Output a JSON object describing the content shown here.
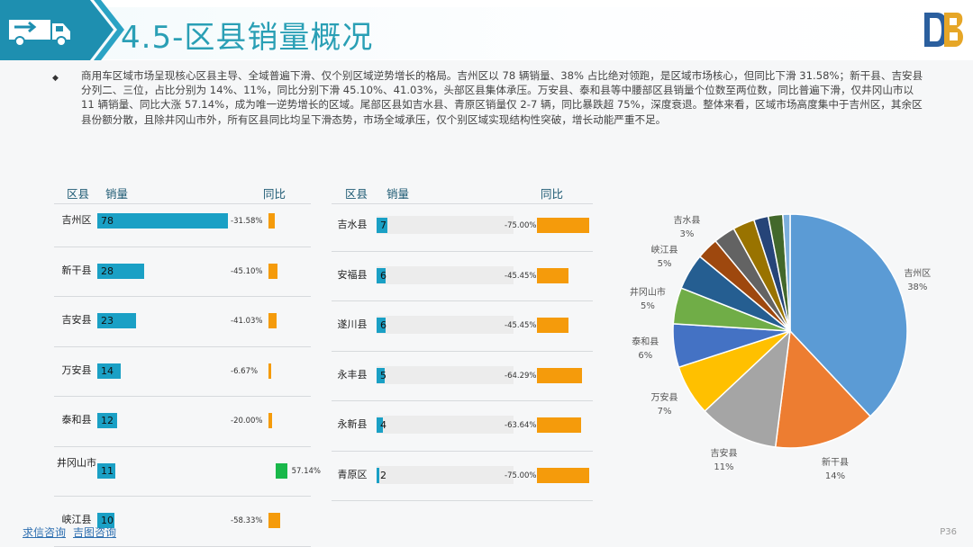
{
  "page": {
    "title": "4.5-区县销量概况",
    "summary": "商用车区域市场呈现核心区县主导、全域普遍下滑、仅个别区域逆势增长的格局。吉州区以 78 辆销量、38% 占比绝对领跑，是区域市场核心，但同比下滑 31.58%；新干县、吉安县分列二、三位，占比分别为 14%、11%，同比分别下滑 45.10%、41.03%，头部区县集体承压。万安县、泰和县等中腰部区县销量个位数至两位数，同比普遍下滑，仅井冈山市以 11 辆销量、同比大涨 57.14%，成为唯一逆势增长的区域。尾部区县如吉水县、青原区销量仅 2-7 辆，同比暴跌超 75%，深度衰退。整体来看，区域市场高度集中于吉州区，其余区县份额分散，且除井冈山市外，所有区县同比均呈下滑态势，市场全域承压，仅个别区域实现结构性突破，增长动能严重不足。",
    "page_number": "P36",
    "footer_links": [
      "求信咨询",
      "吉图咨询"
    ]
  },
  "colors": {
    "accent": "#2a9fb5",
    "bar": "#1aa0c5",
    "decline": "#f59b0b",
    "growth": "#19b84a"
  },
  "chart_data": [
    {
      "type": "table",
      "headers": [
        "区县",
        "销量",
        "同比"
      ],
      "rows": [
        {
          "name": "吉州区",
          "sales": 78,
          "yoy": -31.58,
          "yoy_label": "-31.58%"
        },
        {
          "name": "新干县",
          "sales": 28,
          "yoy": -45.1,
          "yoy_label": "-45.10%"
        },
        {
          "name": "吉安县",
          "sales": 23,
          "yoy": -41.03,
          "yoy_label": "-41.03%"
        },
        {
          "name": "万安县",
          "sales": 14,
          "yoy": -6.67,
          "yoy_label": "-6.67%"
        },
        {
          "name": "泰和县",
          "sales": 12,
          "yoy": -20.0,
          "yoy_label": "-20.00%"
        },
        {
          "name": "井冈山市",
          "sales": 11,
          "yoy": 57.14,
          "yoy_label": "57.14%"
        },
        {
          "name": "峡江县",
          "sales": 10,
          "yoy": -58.33,
          "yoy_label": "-58.33%"
        }
      ]
    },
    {
      "type": "table",
      "headers": [
        "区县",
        "销量",
        "同比"
      ],
      "rows": [
        {
          "name": "吉水县",
          "sales": 7,
          "yoy": -75.0,
          "yoy_label": "-75.00%"
        },
        {
          "name": "安福县",
          "sales": 6,
          "yoy": -45.45,
          "yoy_label": "-45.45%"
        },
        {
          "name": "遂川县",
          "sales": 6,
          "yoy": -45.45,
          "yoy_label": "-45.45%"
        },
        {
          "name": "永丰县",
          "sales": 5,
          "yoy": -64.29,
          "yoy_label": "-64.29%"
        },
        {
          "name": "永新县",
          "sales": 4,
          "yoy": -63.64,
          "yoy_label": "-63.64%"
        },
        {
          "name": "青原区",
          "sales": 2,
          "yoy": -75.0,
          "yoy_label": "-75.00%"
        }
      ]
    },
    {
      "type": "pie",
      "slices": [
        {
          "name": "吉州区",
          "value": 38,
          "label": "38%",
          "color": "#5b9bd5"
        },
        {
          "name": "新干县",
          "value": 14,
          "label": "14%",
          "color": "#ed7d31"
        },
        {
          "name": "吉安县",
          "value": 11,
          "label": "11%",
          "color": "#a5a5a5"
        },
        {
          "name": "万安县",
          "value": 7,
          "label": "7%",
          "color": "#ffc000"
        },
        {
          "name": "泰和县",
          "value": 6,
          "label": "6%",
          "color": "#4472c4"
        },
        {
          "name": "井冈山市",
          "value": 5,
          "label": "5%",
          "color": "#70ad47"
        },
        {
          "name": "峡江县",
          "value": 5,
          "label": "5%",
          "color": "#255e91"
        },
        {
          "name": "吉水县",
          "value": 3,
          "label": "3%",
          "color": "#9e480e"
        },
        {
          "name": "安福县",
          "value": 3,
          "color": "#636363"
        },
        {
          "name": "遂川县",
          "value": 3,
          "color": "#997300"
        },
        {
          "name": "永丰县",
          "value": 2,
          "color": "#264478"
        },
        {
          "name": "永新县",
          "value": 2,
          "color": "#43682b"
        },
        {
          "name": "青原区",
          "value": 1,
          "color": "#7cafdd"
        }
      ]
    }
  ]
}
